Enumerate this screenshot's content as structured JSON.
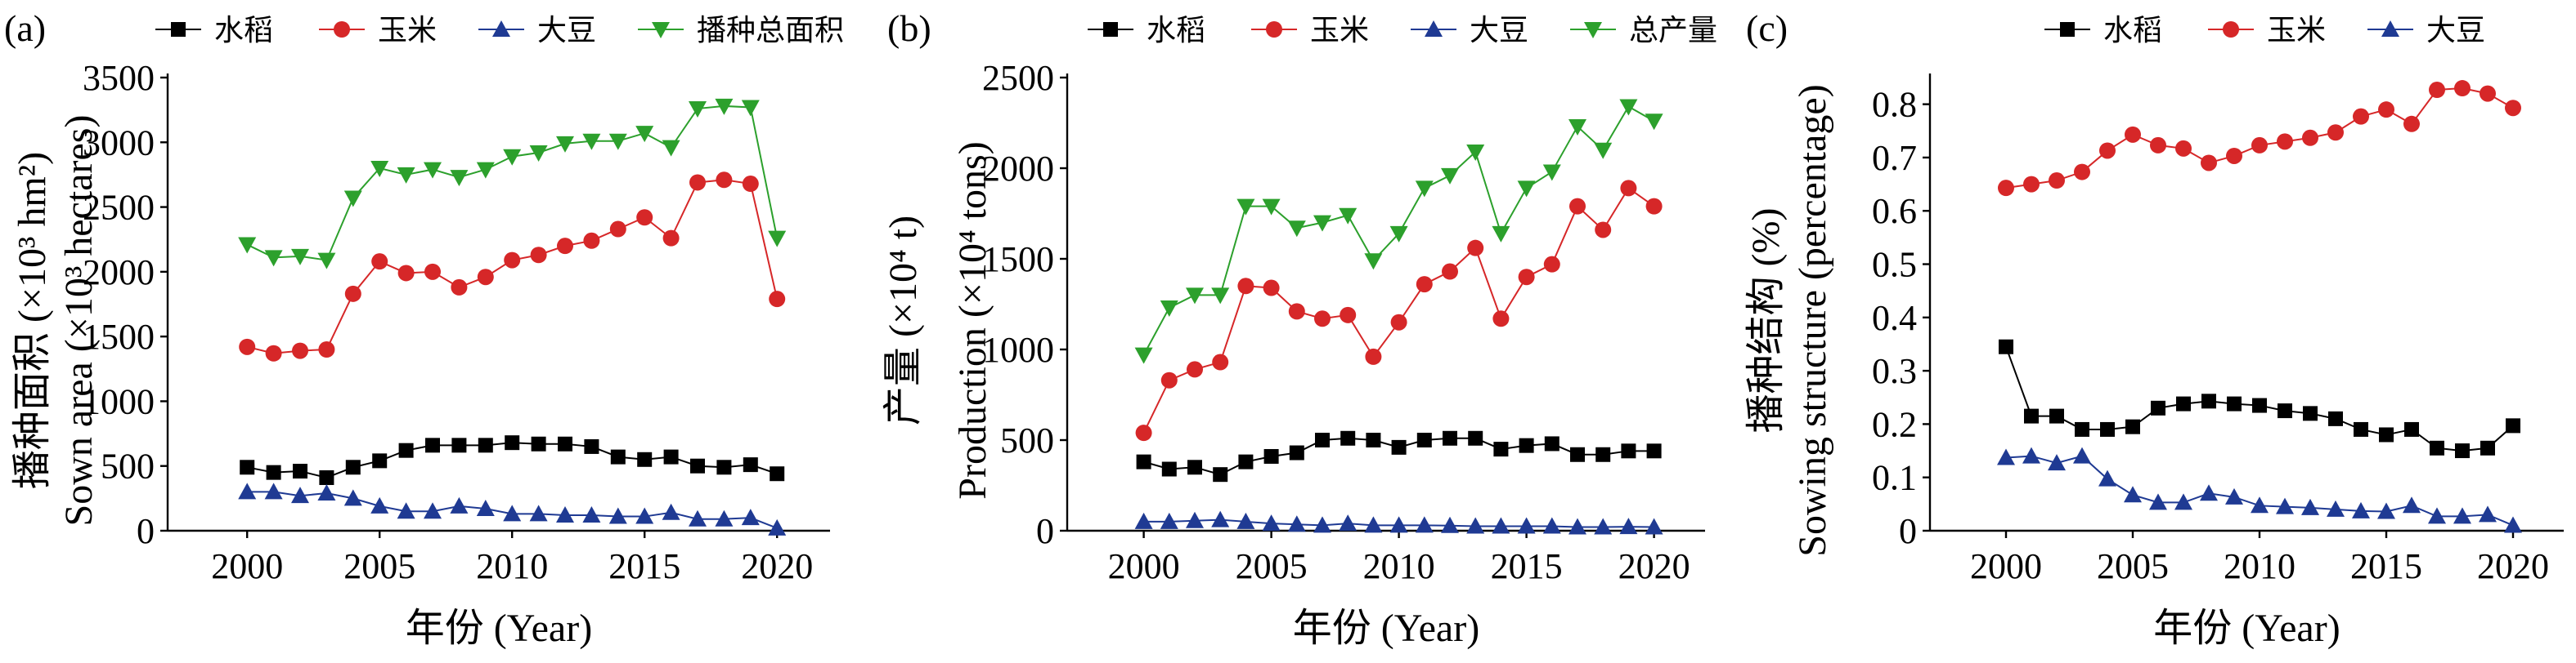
{
  "chart_data": [
    {
      "panel": "(a)",
      "type": "line",
      "xlabel": "年份 (Year)",
      "ylabel_zh": "播种面积 (×10³ hm²)",
      "ylabel_en": "Sown area (×10³ hectares)",
      "xlim": [
        1997,
        2022
      ],
      "ylim": [
        0,
        3500
      ],
      "xticks": [
        2000,
        2005,
        2010,
        2015,
        2020
      ],
      "yticks": [
        0,
        500,
        1000,
        1500,
        2000,
        2500,
        3000,
        3500
      ],
      "x": [
        2000,
        2001,
        2002,
        2003,
        2004,
        2005,
        2006,
        2007,
        2008,
        2009,
        2010,
        2011,
        2012,
        2013,
        2014,
        2015,
        2016,
        2017,
        2018,
        2019,
        2020
      ],
      "legend_position": "top",
      "series": [
        {
          "name": "水稻",
          "marker": "square",
          "color": "#000000",
          "values": [
            490,
            450,
            460,
            410,
            490,
            540,
            620,
            660,
            660,
            660,
            680,
            670,
            670,
            650,
            570,
            550,
            570,
            500,
            490,
            510,
            440
          ]
        },
        {
          "name": "玉米",
          "marker": "circle",
          "color": "#d62728",
          "values": [
            1420,
            1370,
            1390,
            1400,
            1830,
            2080,
            1990,
            2000,
            1880,
            1960,
            2090,
            2130,
            2200,
            2240,
            2330,
            2420,
            2260,
            2690,
            2710,
            2680,
            1790
          ]
        },
        {
          "name": "大豆",
          "marker": "triangle-up",
          "color": "#1f3a93",
          "values": [
            300,
            300,
            270,
            290,
            250,
            190,
            150,
            150,
            190,
            170,
            130,
            130,
            120,
            120,
            110,
            110,
            140,
            90,
            90,
            100,
            20
          ]
        },
        {
          "name": "播种总面积",
          "marker": "triangle-down",
          "color": "#2ca02c",
          "values": [
            2210,
            2110,
            2120,
            2090,
            2570,
            2800,
            2750,
            2790,
            2730,
            2790,
            2890,
            2920,
            2990,
            3010,
            3010,
            3070,
            2960,
            3260,
            3280,
            3270,
            2260
          ]
        }
      ]
    },
    {
      "panel": "(b)",
      "type": "line",
      "xlabel": "年份 (Year)",
      "ylabel_zh": "产量 (×10⁴ t)",
      "ylabel_en": "Production (×10⁴ tons)",
      "xlim": [
        1997,
        2022
      ],
      "ylim": [
        0,
        2500
      ],
      "xticks": [
        2000,
        2005,
        2010,
        2015,
        2020
      ],
      "yticks": [
        0,
        500,
        1000,
        1500,
        2000,
        2500
      ],
      "x": [
        2000,
        2001,
        2002,
        2003,
        2004,
        2005,
        2006,
        2007,
        2008,
        2009,
        2010,
        2011,
        2012,
        2013,
        2014,
        2015,
        2016,
        2017,
        2018,
        2019,
        2020
      ],
      "legend_position": "top",
      "series": [
        {
          "name": "水稻",
          "marker": "square",
          "color": "#000000",
          "values": [
            380,
            340,
            350,
            310,
            380,
            410,
            430,
            500,
            510,
            500,
            460,
            500,
            510,
            510,
            450,
            470,
            480,
            420,
            420,
            440,
            440
          ]
        },
        {
          "name": "玉米",
          "marker": "circle",
          "color": "#d62728",
          "values": [
            540,
            830,
            890,
            930,
            1350,
            1340,
            1210,
            1170,
            1190,
            960,
            1150,
            1360,
            1430,
            1560,
            1170,
            1400,
            1470,
            1790,
            1660,
            1890,
            1790
          ]
        },
        {
          "name": "大豆",
          "marker": "triangle-up",
          "color": "#1f3a93",
          "values": [
            50,
            50,
            55,
            60,
            50,
            40,
            35,
            30,
            40,
            30,
            30,
            30,
            28,
            25,
            25,
            25,
            25,
            20,
            20,
            22,
            20
          ]
        },
        {
          "name": "总产量",
          "marker": "triangle-down",
          "color": "#2ca02c",
          "values": [
            970,
            1230,
            1300,
            1300,
            1790,
            1790,
            1670,
            1700,
            1740,
            1490,
            1640,
            1890,
            1960,
            2090,
            1640,
            1890,
            1980,
            2230,
            2100,
            2340,
            2260
          ]
        }
      ]
    },
    {
      "panel": "(c)",
      "type": "line",
      "xlabel": "年份 (Year)",
      "ylabel_zh": "播种结构 (%)",
      "ylabel_en": "Sowing structure (percentage)",
      "xlim": [
        1997,
        2022
      ],
      "ylim": [
        0,
        0.85
      ],
      "xticks": [
        2000,
        2005,
        2010,
        2015,
        2020
      ],
      "yticks": [
        0,
        0.1,
        0.2,
        0.3,
        0.4,
        0.5,
        0.6,
        0.7,
        0.8
      ],
      "x": [
        2000,
        2001,
        2002,
        2003,
        2004,
        2005,
        2006,
        2007,
        2008,
        2009,
        2010,
        2011,
        2012,
        2013,
        2014,
        2015,
        2016,
        2017,
        2018,
        2019,
        2020
      ],
      "legend_position": "top",
      "series": [
        {
          "name": "水稻",
          "marker": "square",
          "color": "#000000",
          "values": [
            0.345,
            0.215,
            0.215,
            0.19,
            0.19,
            0.195,
            0.23,
            0.238,
            0.243,
            0.238,
            0.235,
            0.225,
            0.22,
            0.21,
            0.19,
            0.18,
            0.19,
            0.155,
            0.15,
            0.155,
            0.197
          ]
        },
        {
          "name": "玉米",
          "marker": "circle",
          "color": "#d62728",
          "values": [
            0.643,
            0.65,
            0.657,
            0.673,
            0.713,
            0.743,
            0.723,
            0.717,
            0.69,
            0.703,
            0.723,
            0.73,
            0.737,
            0.747,
            0.777,
            0.79,
            0.763,
            0.827,
            0.83,
            0.82,
            0.793
          ]
        },
        {
          "name": "大豆",
          "marker": "triangle-up",
          "color": "#1f3a93",
          "values": [
            0.137,
            0.14,
            0.127,
            0.14,
            0.097,
            0.067,
            0.053,
            0.053,
            0.07,
            0.063,
            0.047,
            0.045,
            0.043,
            0.04,
            0.037,
            0.036,
            0.047,
            0.027,
            0.027,
            0.03,
            0.01
          ]
        }
      ]
    }
  ]
}
